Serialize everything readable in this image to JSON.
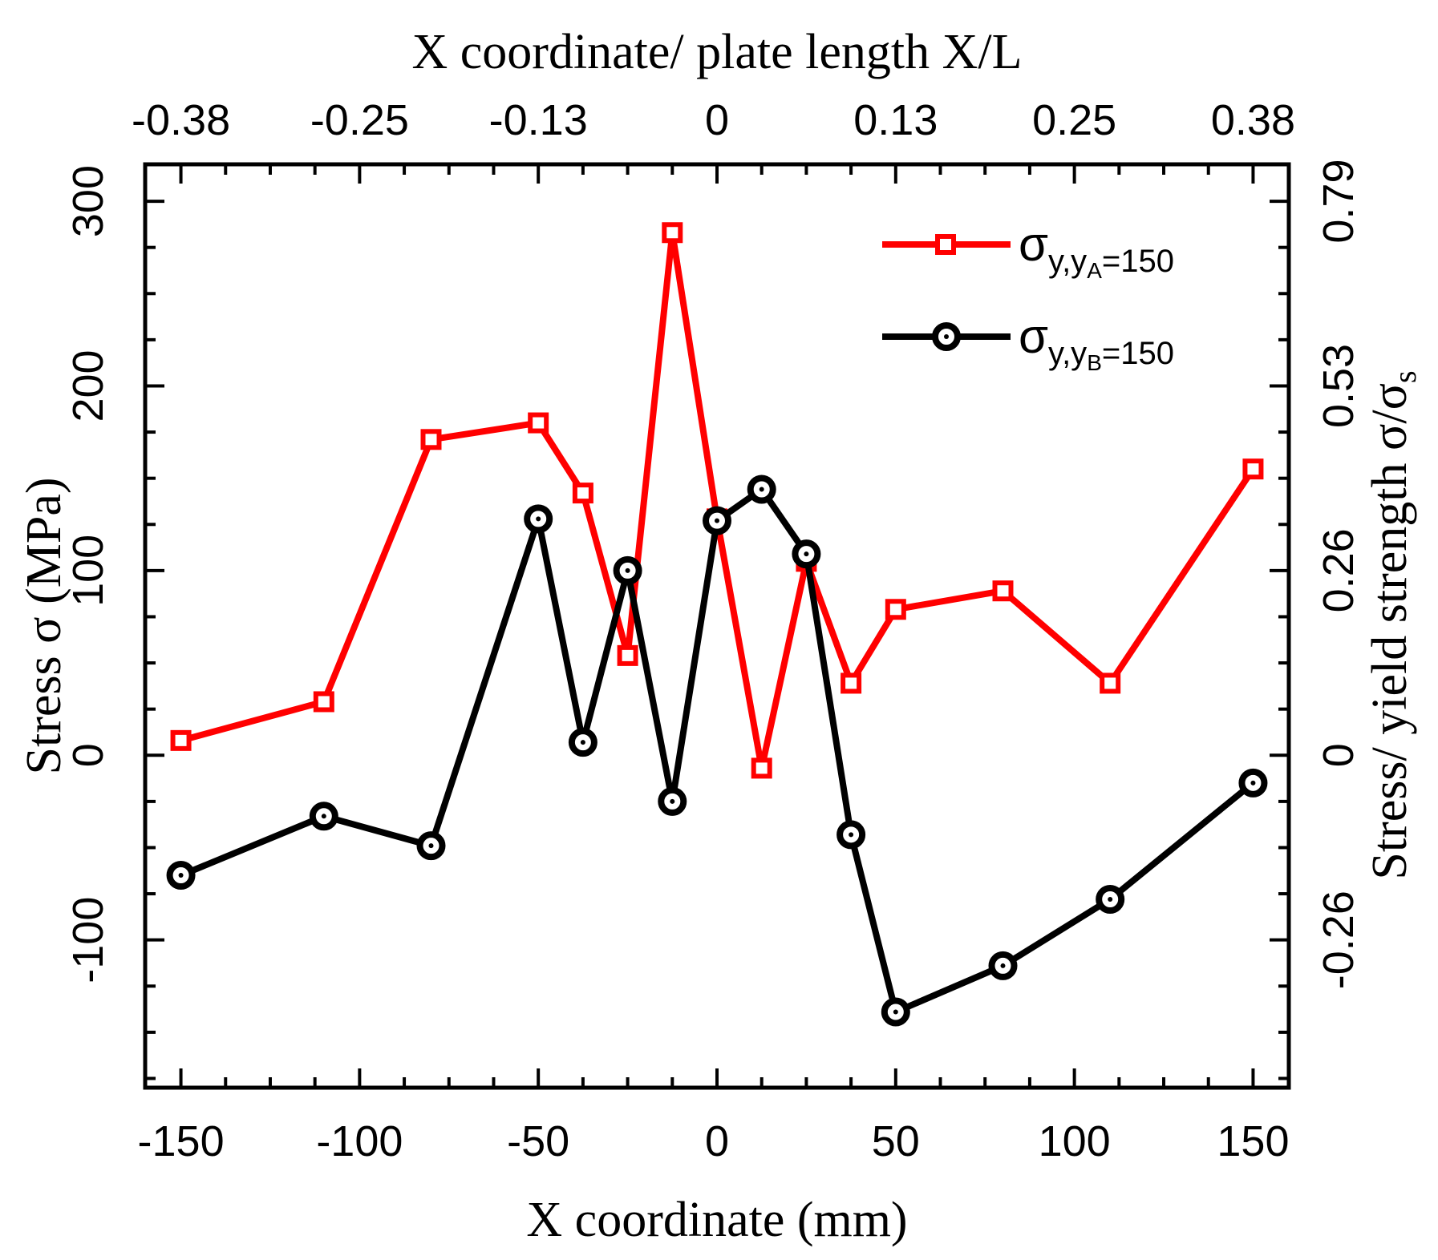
{
  "chart_data": {
    "type": "line",
    "xlabel": "X coordinate (mm)",
    "ylabel": "Stress σ (MPa)",
    "x2label": "X coordinate/ plate length X/L",
    "y2label_main": "Stress/ yield strength σ/σ",
    "y2label_sub": "s",
    "xlim": [
      -160,
      160
    ],
    "ylim": [
      -180,
      320
    ],
    "xticks": [
      {
        "value": -150,
        "label": "-150"
      },
      {
        "value": -100,
        "label": "-100"
      },
      {
        "value": -50,
        "label": "-50"
      },
      {
        "value": 0,
        "label": "0"
      },
      {
        "value": 50,
        "label": "50"
      },
      {
        "value": 100,
        "label": "100"
      },
      {
        "value": 150,
        "label": "150"
      }
    ],
    "yticks": [
      {
        "value": -100,
        "label": "-100"
      },
      {
        "value": 0,
        "label": "0"
      },
      {
        "value": 100,
        "label": "100"
      },
      {
        "value": 200,
        "label": "200"
      },
      {
        "value": 300,
        "label": "300"
      }
    ],
    "x2ticks": [
      {
        "value": -150,
        "label": "-0.38"
      },
      {
        "value": -100,
        "label": "-0.25"
      },
      {
        "value": -50,
        "label": "-0.13"
      },
      {
        "value": 0,
        "label": "0"
      },
      {
        "value": 50,
        "label": "0.13"
      },
      {
        "value": 100,
        "label": "0.25"
      },
      {
        "value": 150,
        "label": "0.38"
      }
    ],
    "y2ticks": [
      {
        "value": -100,
        "label": "-0.26"
      },
      {
        "value": 0,
        "label": "0"
      },
      {
        "value": 100,
        "label": "0.26"
      },
      {
        "value": 200,
        "label": "0.53"
      },
      {
        "value": 300,
        "label": "0.79"
      }
    ],
    "series": [
      {
        "name": "σy,yA=150",
        "legend_main": "σ",
        "legend_sub": "y,y",
        "legend_subsub": "A",
        "legend_rest": "=150",
        "color": "#ff0000",
        "marker": "square",
        "x": [
          -150,
          -110,
          -80,
          -50,
          -37.5,
          -25,
          -12.5,
          0,
          12.5,
          25,
          37.5,
          50,
          80,
          110,
          150
        ],
        "y": [
          8,
          29,
          171,
          180,
          142,
          54,
          283,
          128,
          -7,
          105,
          39,
          79,
          89,
          39,
          155
        ]
      },
      {
        "name": "σy,yB=150",
        "legend_main": "σ",
        "legend_sub": "y,y",
        "legend_subsub": "B",
        "legend_rest": "=150",
        "color": "#000000",
        "marker": "circle",
        "x": [
          -150,
          -110,
          -80,
          -50,
          -37.5,
          -25,
          -12.5,
          0,
          12.5,
          25,
          37.5,
          50,
          80,
          110,
          150
        ],
        "y": [
          -65,
          -33,
          -49,
          128,
          7,
          100,
          -25,
          127,
          144,
          109,
          -43,
          -139,
          -114,
          -78,
          -15
        ]
      }
    ]
  }
}
